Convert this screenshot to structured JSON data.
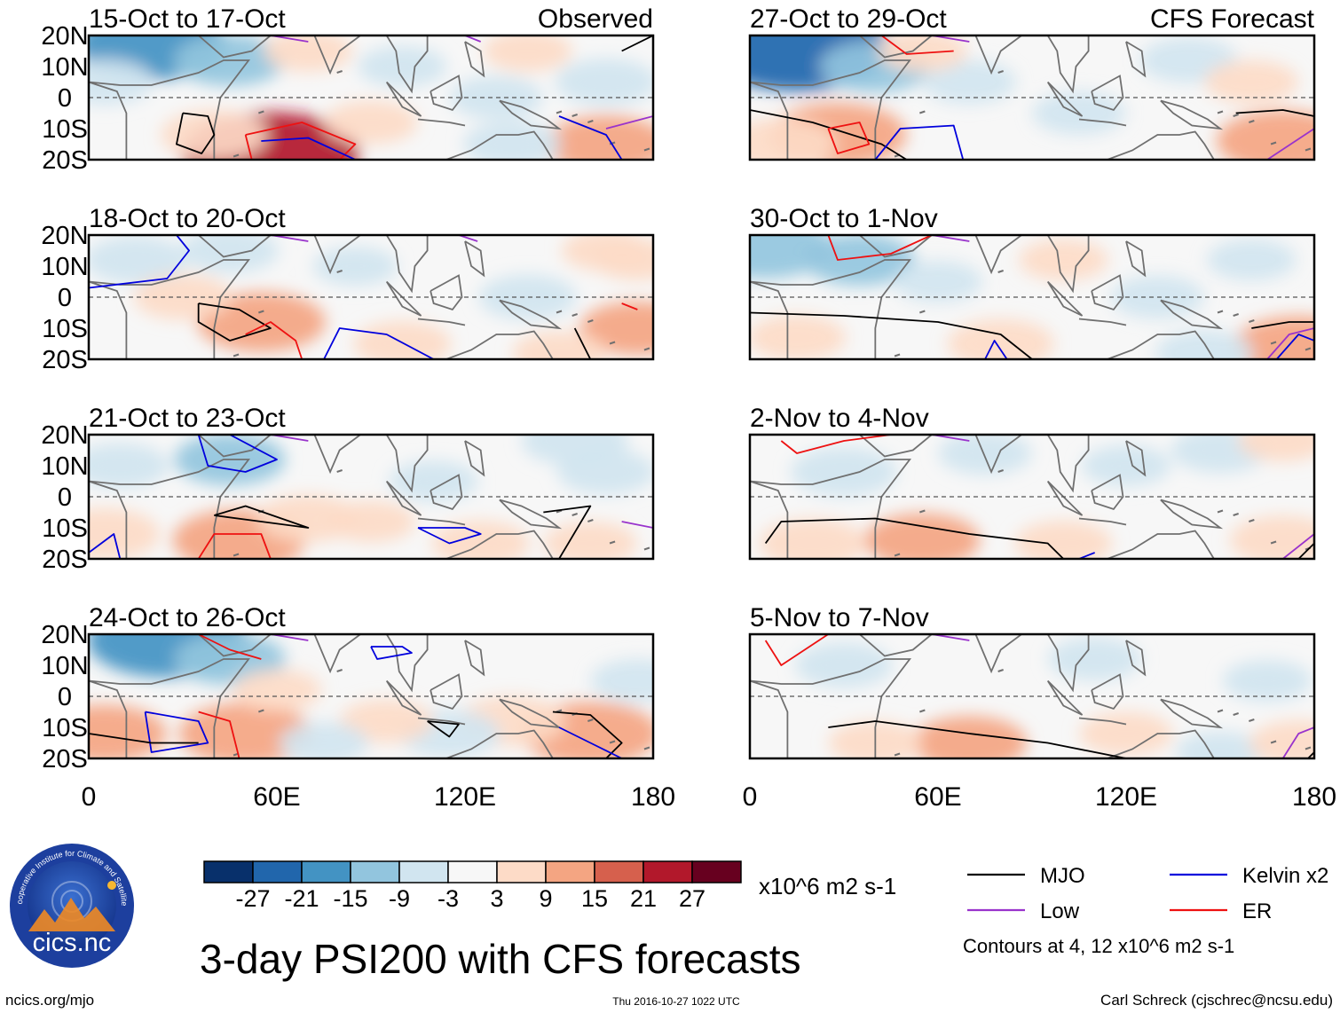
{
  "chart_data": {
    "type": "heatmap",
    "title": "3-day PSI200 with CFS forecasts",
    "variable": "PSI200 anomaly",
    "units": "x10^6 m2 s-1",
    "x_axis": {
      "range": [
        0,
        180
      ],
      "ticks": [
        "0",
        "60E",
        "120E",
        "180"
      ]
    },
    "y_axis": {
      "range": [
        -20,
        20
      ],
      "ticks": [
        "20N",
        "10N",
        "0",
        "10S",
        "20S"
      ]
    },
    "column_labels": [
      "Observed",
      "CFS Forecast"
    ],
    "panels": [
      {
        "period": "15-Oct to 17-Oct",
        "source": "observed",
        "anomalies": [
          {
            "lon": 20,
            "lat": 17,
            "value": -18
          },
          {
            "lon": 45,
            "lat": 12,
            "value": -9
          },
          {
            "lon": 5,
            "lat": 5,
            "value": -6
          },
          {
            "lon": 58,
            "lat": -18,
            "value": 24
          },
          {
            "lon": 40,
            "lat": -12,
            "value": 8
          },
          {
            "lon": 90,
            "lat": -8,
            "value": 5
          },
          {
            "lon": 100,
            "lat": 10,
            "value": -4
          },
          {
            "lon": 130,
            "lat": 0,
            "value": -5
          },
          {
            "lon": 165,
            "lat": 5,
            "value": -7
          },
          {
            "lon": 165,
            "lat": -15,
            "value": 12
          },
          {
            "lon": 140,
            "lat": 15,
            "value": 4
          },
          {
            "lon": 135,
            "lat": -15,
            "value": -6
          },
          {
            "lon": 70,
            "lat": 15,
            "value": 4
          }
        ]
      },
      {
        "period": "18-Oct to 20-Oct",
        "source": "observed",
        "anomalies": [
          {
            "lon": 15,
            "lat": 12,
            "value": -7
          },
          {
            "lon": 45,
            "lat": 15,
            "value": -6
          },
          {
            "lon": 55,
            "lat": -8,
            "value": 13
          },
          {
            "lon": 30,
            "lat": 0,
            "value": 6
          },
          {
            "lon": 100,
            "lat": -15,
            "value": 6
          },
          {
            "lon": 140,
            "lat": 0,
            "value": -6
          },
          {
            "lon": 175,
            "lat": -10,
            "value": 10
          },
          {
            "lon": 150,
            "lat": -18,
            "value": 5
          },
          {
            "lon": 165,
            "lat": 15,
            "value": 4
          },
          {
            "lon": 85,
            "lat": 10,
            "value": -3
          },
          {
            "lon": 175,
            "lat": 12,
            "value": 4
          }
        ]
      },
      {
        "period": "21-Oct to 23-Oct",
        "source": "observed",
        "anomalies": [
          {
            "lon": 45,
            "lat": 12,
            "value": -9
          },
          {
            "lon": 10,
            "lat": 10,
            "value": -6
          },
          {
            "lon": 48,
            "lat": -14,
            "value": 14
          },
          {
            "lon": 5,
            "lat": -12,
            "value": 9
          },
          {
            "lon": 70,
            "lat": -7,
            "value": 7
          },
          {
            "lon": 125,
            "lat": -15,
            "value": 6
          },
          {
            "lon": 155,
            "lat": 18,
            "value": -8
          },
          {
            "lon": 165,
            "lat": 8,
            "value": -6
          },
          {
            "lon": 110,
            "lat": 5,
            "value": -4
          },
          {
            "lon": 160,
            "lat": -15,
            "value": 5
          },
          {
            "lon": 90,
            "lat": -8,
            "value": 4
          }
        ]
      },
      {
        "period": "24-Oct to 26-Oct",
        "source": "observed",
        "anomalies": [
          {
            "lon": 25,
            "lat": 18,
            "value": -20
          },
          {
            "lon": 45,
            "lat": 12,
            "value": -9
          },
          {
            "lon": 5,
            "lat": -12,
            "value": 12
          },
          {
            "lon": 50,
            "lat": -12,
            "value": 14
          },
          {
            "lon": 160,
            "lat": -12,
            "value": 15
          },
          {
            "lon": 135,
            "lat": -8,
            "value": 8
          },
          {
            "lon": 115,
            "lat": -12,
            "value": -7
          },
          {
            "lon": 95,
            "lat": -8,
            "value": 5
          },
          {
            "lon": 60,
            "lat": 2,
            "value": 4
          },
          {
            "lon": 175,
            "lat": 5,
            "value": -5
          },
          {
            "lon": 75,
            "lat": -15,
            "value": -4
          }
        ]
      },
      {
        "period": "27-Oct to 29-Oct",
        "source": "forecast",
        "anomalies": [
          {
            "lon": 15,
            "lat": 16,
            "value": -26
          },
          {
            "lon": 40,
            "lat": 10,
            "value": -9
          },
          {
            "lon": 28,
            "lat": -12,
            "value": 15
          },
          {
            "lon": 10,
            "lat": -15,
            "value": 9
          },
          {
            "lon": 170,
            "lat": -14,
            "value": 14
          },
          {
            "lon": 70,
            "lat": 5,
            "value": -5
          },
          {
            "lon": 105,
            "lat": -5,
            "value": -5
          },
          {
            "lon": 140,
            "lat": 12,
            "value": -6
          },
          {
            "lon": 160,
            "lat": 5,
            "value": 5
          },
          {
            "lon": 55,
            "lat": 15,
            "value": 4
          }
        ]
      },
      {
        "period": "30-Oct to 1-Nov",
        "source": "forecast",
        "anomalies": [
          {
            "lon": 5,
            "lat": 16,
            "value": -14
          },
          {
            "lon": 35,
            "lat": 12,
            "value": -9
          },
          {
            "lon": 15,
            "lat": -13,
            "value": 6
          },
          {
            "lon": 80,
            "lat": -15,
            "value": 8
          },
          {
            "lon": 175,
            "lat": -16,
            "value": 14
          },
          {
            "lon": 130,
            "lat": 0,
            "value": -5
          },
          {
            "lon": 145,
            "lat": -18,
            "value": -6
          },
          {
            "lon": 100,
            "lat": 12,
            "value": 4
          },
          {
            "lon": 160,
            "lat": 12,
            "value": -4
          },
          {
            "lon": 60,
            "lat": 5,
            "value": -4
          }
        ]
      },
      {
        "period": "2-Nov to 4-Nov",
        "source": "forecast",
        "anomalies": [
          {
            "lon": 30,
            "lat": 8,
            "value": -8
          },
          {
            "lon": 75,
            "lat": 14,
            "value": -5
          },
          {
            "lon": 20,
            "lat": -15,
            "value": 8
          },
          {
            "lon": 55,
            "lat": -14,
            "value": 10
          },
          {
            "lon": 100,
            "lat": -15,
            "value": 6
          },
          {
            "lon": 170,
            "lat": -14,
            "value": 8
          },
          {
            "lon": 150,
            "lat": 15,
            "value": -6
          },
          {
            "lon": 120,
            "lat": 10,
            "value": -4
          },
          {
            "lon": 170,
            "lat": 18,
            "value": 4
          }
        ]
      },
      {
        "period": "5-Nov to 7-Nov",
        "source": "forecast",
        "anomalies": [
          {
            "lon": 30,
            "lat": 10,
            "value": -6
          },
          {
            "lon": 70,
            "lat": -15,
            "value": 10
          },
          {
            "lon": 120,
            "lat": -12,
            "value": 5
          },
          {
            "lon": 165,
            "lat": 5,
            "value": -4
          },
          {
            "lon": 110,
            "lat": 12,
            "value": -5
          },
          {
            "lon": 40,
            "lat": -15,
            "value": 5
          },
          {
            "lon": 150,
            "lat": -18,
            "value": -4
          },
          {
            "lon": 175,
            "lat": -15,
            "value": 6
          }
        ]
      }
    ],
    "colorbar": {
      "labels": [
        "-27",
        "-21",
        "-15",
        "-9",
        "-3",
        "3",
        "9",
        "15",
        "21",
        "27"
      ],
      "colors": [
        "#08306b",
        "#2166ac",
        "#4393c3",
        "#92c5de",
        "#d1e5f0",
        "#f7f7f7",
        "#fddbc7",
        "#f4a582",
        "#d6604d",
        "#b2182b",
        "#67001f"
      ],
      "units": "x10^6 m2 s-1"
    },
    "legend": {
      "items": [
        {
          "label": "MJO",
          "color": "#000000"
        },
        {
          "label": "Kelvin x2",
          "color": "#0000dd"
        },
        {
          "label": "Low",
          "color": "#9933cc"
        },
        {
          "label": "ER",
          "color": "#ee1111"
        }
      ],
      "note": "Contours at 4, 12 x10^6 m2 s-1"
    }
  },
  "footer": {
    "logo_text": "cics.nc",
    "logo_ring_text": "Cooperative Institute for Climate and Satellites",
    "left": "ncics.org/mjo",
    "center": "Thu 2016-10-27 1022 UTC",
    "right": "Carl Schreck (cjschrec@ncsu.edu)"
  }
}
